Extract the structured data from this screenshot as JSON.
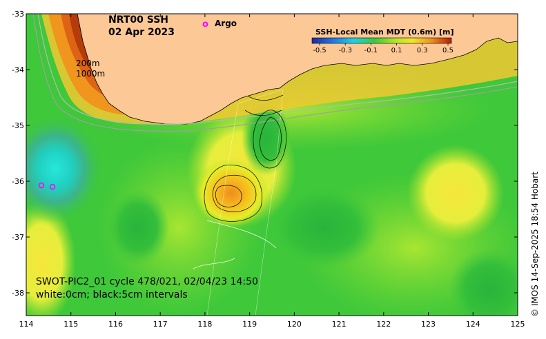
{
  "title": {
    "product": "NRT00 SSH",
    "date": "02 Apr 2023"
  },
  "legend": {
    "argo_marker": "o",
    "argo_label": "Argo",
    "argo_color": "#ff00ff"
  },
  "depth_contours": {
    "shallow": "200m",
    "deep": "1000m"
  },
  "colorbar": {
    "title": "SSH-Local Mean MDT (0.6m) [m]",
    "ticks": [
      "-0.5",
      "-0.3",
      "-0.1",
      "0.1",
      "0.3",
      "0.5"
    ]
  },
  "swot": {
    "line1": "SWOT-PIC2_01 cycle 478/021, 02/04/23 14:50",
    "line2": "white:0cm; black:5cm intervals"
  },
  "axes": {
    "x_ticks": [
      "114",
      "115",
      "116",
      "117",
      "118",
      "119",
      "120",
      "121",
      "122",
      "123",
      "124",
      "125"
    ],
    "y_ticks": [
      "-33",
      "-34",
      "-35",
      "-36",
      "-37",
      "-38"
    ]
  },
  "credit": "© IMOS 14-Sep-2025 18:54 Hobart",
  "colors": {
    "land": "#fcc896",
    "ocean_base": "#3ec83a",
    "ssh_high": "#a81e0a",
    "ssh_low": "#1ee6d2"
  }
}
